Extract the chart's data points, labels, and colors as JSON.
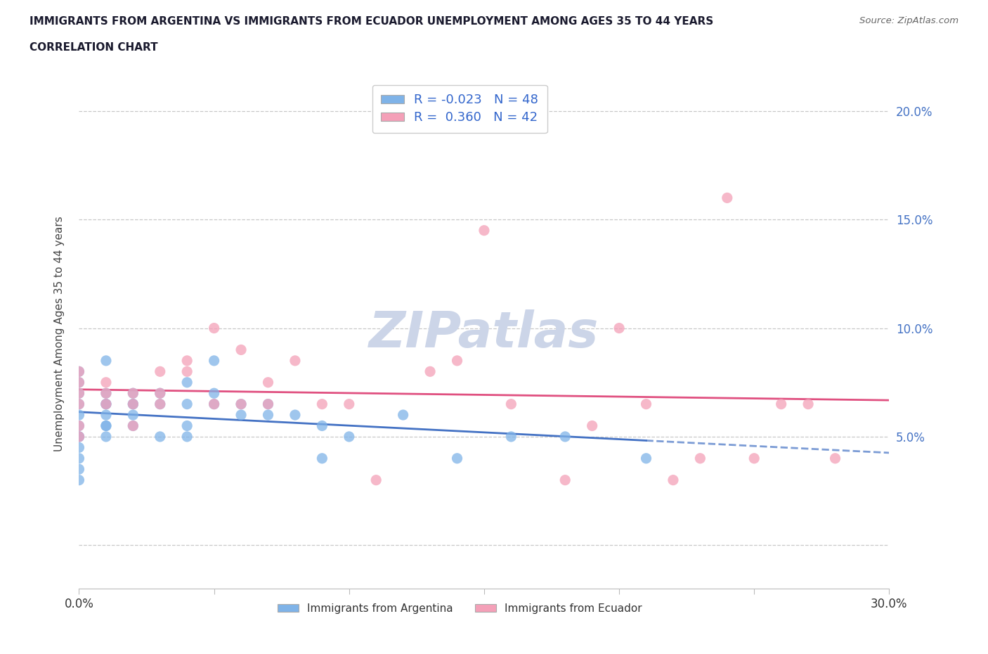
{
  "title_line1": "IMMIGRANTS FROM ARGENTINA VS IMMIGRANTS FROM ECUADOR UNEMPLOYMENT AMONG AGES 35 TO 44 YEARS",
  "title_line2": "CORRELATION CHART",
  "source_text": "Source: ZipAtlas.com",
  "ylabel": "Unemployment Among Ages 35 to 44 years",
  "xmin": 0.0,
  "xmax": 0.3,
  "ymin": -0.02,
  "ymax": 0.215,
  "argentina_color": "#7fb3e8",
  "ecuador_color": "#f4a0b8",
  "argentina_line_color": "#4472c4",
  "ecuador_line_color": "#e05080",
  "grid_color": "#c8c8c8",
  "watermark_color": "#ccd5e8",
  "argentina_R": -0.023,
  "ecuador_R": 0.36,
  "argentina_N": 48,
  "ecuador_N": 42,
  "argentina_x": [
    0.0,
    0.0,
    0.0,
    0.0,
    0.0,
    0.0,
    0.0,
    0.0,
    0.0,
    0.0,
    0.0,
    0.0,
    0.01,
    0.01,
    0.01,
    0.01,
    0.01,
    0.01,
    0.01,
    0.01,
    0.02,
    0.02,
    0.02,
    0.02,
    0.02,
    0.03,
    0.03,
    0.03,
    0.04,
    0.04,
    0.04,
    0.04,
    0.05,
    0.05,
    0.05,
    0.06,
    0.06,
    0.07,
    0.07,
    0.08,
    0.09,
    0.09,
    0.1,
    0.12,
    0.14,
    0.16,
    0.18,
    0.21
  ],
  "argentina_y": [
    0.05,
    0.055,
    0.06,
    0.065,
    0.07,
    0.075,
    0.08,
    0.05,
    0.045,
    0.04,
    0.035,
    0.03,
    0.085,
    0.055,
    0.065,
    0.06,
    0.055,
    0.05,
    0.07,
    0.065,
    0.06,
    0.065,
    0.07,
    0.065,
    0.055,
    0.065,
    0.07,
    0.05,
    0.065,
    0.075,
    0.05,
    0.055,
    0.065,
    0.085,
    0.07,
    0.06,
    0.065,
    0.06,
    0.065,
    0.06,
    0.055,
    0.04,
    0.05,
    0.06,
    0.04,
    0.05,
    0.05,
    0.04
  ],
  "ecuador_x": [
    0.0,
    0.0,
    0.0,
    0.0,
    0.0,
    0.0,
    0.01,
    0.01,
    0.01,
    0.02,
    0.02,
    0.02,
    0.03,
    0.03,
    0.03,
    0.04,
    0.04,
    0.05,
    0.05,
    0.06,
    0.06,
    0.07,
    0.07,
    0.08,
    0.09,
    0.1,
    0.11,
    0.13,
    0.14,
    0.15,
    0.16,
    0.18,
    0.19,
    0.2,
    0.21,
    0.22,
    0.23,
    0.24,
    0.25,
    0.26,
    0.27,
    0.28
  ],
  "ecuador_y": [
    0.055,
    0.065,
    0.07,
    0.075,
    0.08,
    0.05,
    0.065,
    0.07,
    0.075,
    0.065,
    0.07,
    0.055,
    0.065,
    0.07,
    0.08,
    0.08,
    0.085,
    0.065,
    0.1,
    0.09,
    0.065,
    0.065,
    0.075,
    0.085,
    0.065,
    0.065,
    0.03,
    0.08,
    0.085,
    0.145,
    0.065,
    0.03,
    0.055,
    0.1,
    0.065,
    0.03,
    0.04,
    0.16,
    0.04,
    0.065,
    0.065,
    0.04
  ]
}
